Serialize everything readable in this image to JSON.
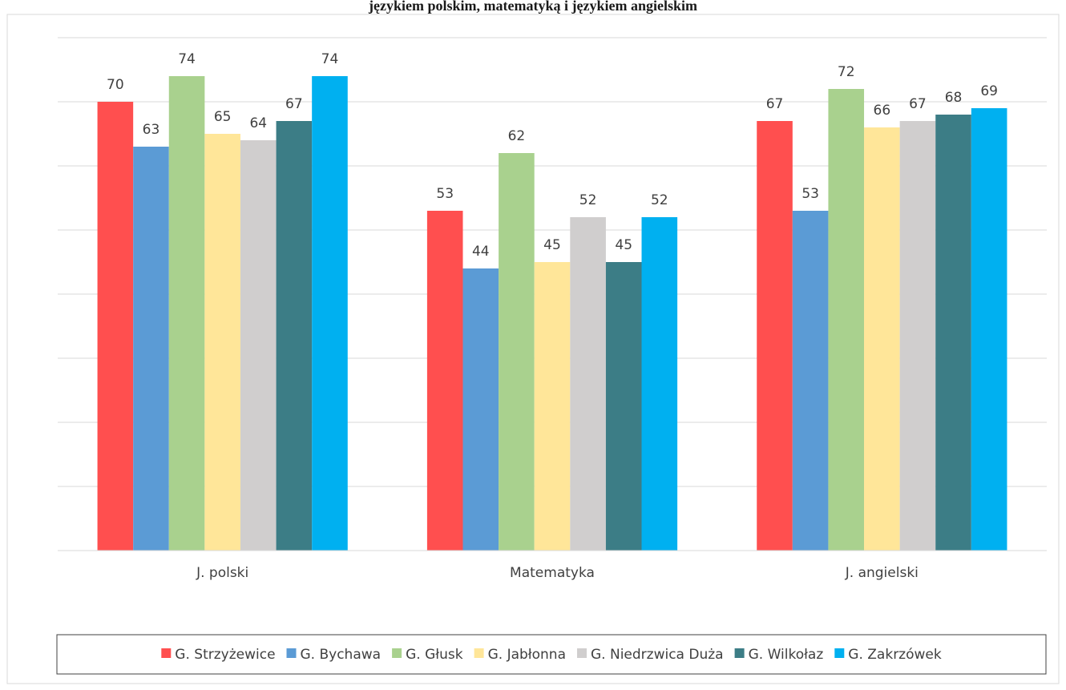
{
  "title": "językiem polskim, matematyką i językiem angielskim",
  "chart_data": {
    "type": "bar",
    "title": "językiem polskim, matematyką i językiem angielskim",
    "categories": [
      "J. polski",
      "Matematyka",
      "J. angielski"
    ],
    "series": [
      {
        "name": "G. Strzyżewice",
        "color": "#FF4F4F",
        "values": [
          70,
          53,
          67
        ]
      },
      {
        "name": "G. Bychawa",
        "color": "#5B9BD5",
        "values": [
          63,
          44,
          53
        ]
      },
      {
        "name": "G. Głusk",
        "color": "#A9D18E",
        "values": [
          74,
          62,
          72
        ]
      },
      {
        "name": "G. Jabłonna",
        "color": "#FFE699",
        "values": [
          65,
          45,
          66
        ]
      },
      {
        "name": "G. Niedrzwica Duża",
        "color": "#D0CECE",
        "values": [
          64,
          52,
          67
        ]
      },
      {
        "name": "G. Wilkołaz",
        "color": "#3C7D86",
        "values": [
          67,
          45,
          68
        ]
      },
      {
        "name": "G. Zakrzówek",
        "color": "#00B0F0",
        "values": [
          74,
          52,
          69
        ]
      }
    ],
    "ylim": [
      0,
      80
    ],
    "grid": true,
    "legend": "bottom",
    "data_labels": true
  }
}
